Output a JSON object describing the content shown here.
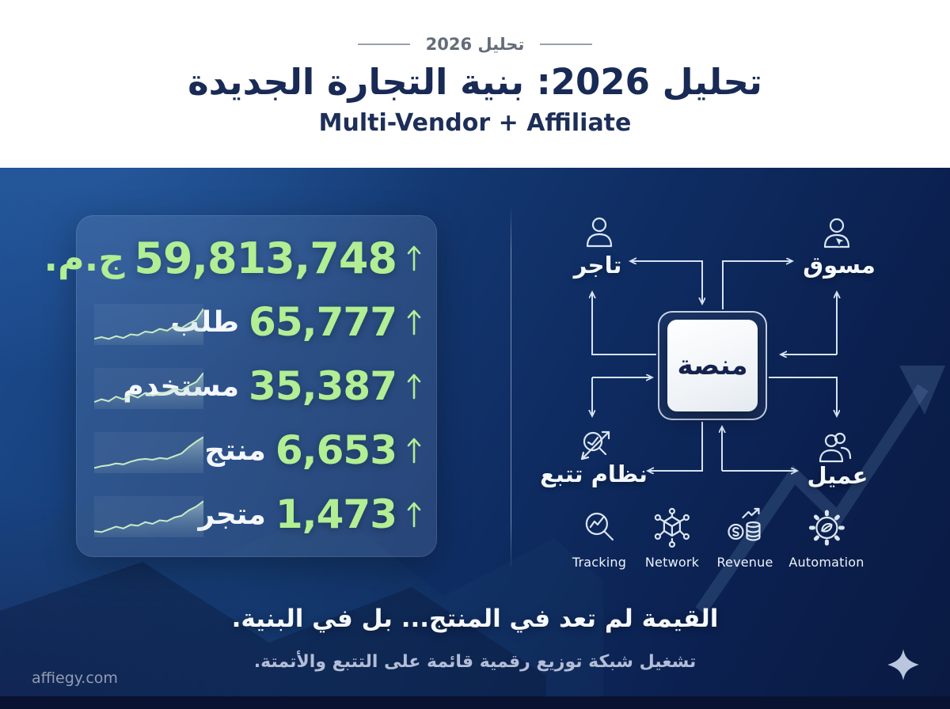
{
  "header": {
    "eyebrow": "تحليل 2026",
    "title": "تحليل 2026: بنية التجارة الجديدة",
    "subtitle": "Multi-Vendor + Affiliate"
  },
  "stats": {
    "rows": [
      {
        "value": "59,813,748",
        "unit": "ج.م.",
        "trend": "up"
      },
      {
        "value": "65,777",
        "unit": "طلب",
        "trend": "up"
      },
      {
        "value": "35,387",
        "unit": "مستخدم",
        "trend": "up"
      },
      {
        "value": "6,653",
        "unit": "منتج",
        "trend": "up"
      },
      {
        "value": "1,473",
        "unit": "متجر",
        "trend": "up"
      }
    ]
  },
  "diagram": {
    "center_label": "منصة",
    "top_left_label": "تاجر",
    "top_right_label": "مسوق",
    "bottom_left_label": "نظام تتبع",
    "bottom_right_label": "عميل",
    "features": [
      {
        "label": "Tracking"
      },
      {
        "label": "Network"
      },
      {
        "label": "Revenue"
      },
      {
        "label": "Automation"
      }
    ]
  },
  "footer": {
    "quote": "القيمة لم تعد في المنتج... بل في البنية.",
    "subquote": "تشغيل شبكة توزيع رقمية قائمة على التتبع والأتمتة.",
    "website": "affiegy.com"
  },
  "colors": {
    "accent_green": "#b1ee94",
    "title_navy": "#182a55",
    "bg_top": "#1d4c8f",
    "bg_bottom": "#0a1a42",
    "text_light": "#f4f8fc",
    "muted_blue": "#b3bdd6"
  },
  "chart_data": {
    "type": "area",
    "title": "sparkline trends (unlabeled mini charts)",
    "x": [
      0,
      1,
      2,
      3,
      4,
      5,
      6,
      7,
      8,
      9,
      10,
      11,
      12,
      13,
      14,
      15
    ],
    "ylim": [
      0,
      40
    ],
    "grid": false,
    "series": [
      {
        "name": "طلب",
        "values": [
          5,
          7,
          5,
          8,
          6,
          10,
          9,
          13,
          12,
          16,
          14,
          19,
          17,
          22,
          26,
          38
        ]
      },
      {
        "name": "مستخدم",
        "values": [
          6,
          9,
          7,
          12,
          9,
          14,
          11,
          16,
          13,
          15,
          17,
          21,
          19,
          24,
          28,
          38
        ]
      },
      {
        "name": "منتج",
        "values": [
          4,
          6,
          7,
          9,
          8,
          11,
          13,
          14,
          13,
          15,
          14,
          17,
          20,
          27,
          33,
          38
        ]
      },
      {
        "name": "متجر",
        "values": [
          5,
          4,
          7,
          10,
          8,
          12,
          11,
          15,
          13,
          17,
          16,
          20,
          22,
          28,
          32,
          38
        ]
      }
    ]
  }
}
